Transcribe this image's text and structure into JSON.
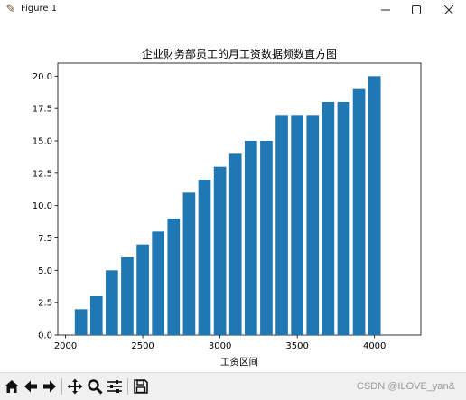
{
  "window": {
    "title": "Figure 1",
    "icon": "figure-app-icon",
    "controls": [
      "minimize-icon",
      "maximize-icon",
      "close-icon"
    ]
  },
  "toolbar": {
    "buttons": [
      "home-icon",
      "back-arrow-icon",
      "forward-arrow-icon",
      "pan-move-icon",
      "zoom-magnifier-icon",
      "configure-subplots-icon",
      "save-floppy-icon"
    ],
    "watermark": "CSDN @ILOVE_yan&"
  },
  "chart_data": {
    "type": "bar",
    "title": "企业财务部员工的月工资数据频数直方图",
    "xlabel": "工资区间",
    "ylabel": "",
    "bar_color": "#1f77b4",
    "x": [
      2100,
      2200,
      2300,
      2400,
      2500,
      2600,
      2700,
      2800,
      2900,
      3000,
      3100,
      3200,
      3300,
      3400,
      3500,
      3600,
      3700,
      3800,
      3900,
      4000,
      4100
    ],
    "values": [
      2,
      3,
      5,
      6,
      7,
      8,
      9,
      11,
      12,
      13,
      14,
      15,
      15,
      17,
      17,
      17,
      18,
      18,
      19,
      20,
      0
    ],
    "xlim": [
      1950,
      4300
    ],
    "ylim": [
      0,
      21
    ],
    "xticks": [
      2000,
      2500,
      3000,
      3500,
      4000
    ],
    "xtick_labels": [
      "2000",
      "2500",
      "3000",
      "3500",
      "4000"
    ],
    "yticks": [
      0,
      2.5,
      5,
      7.5,
      10,
      12.5,
      15,
      17.5,
      20
    ],
    "ytick_labels": [
      "0.0",
      "2.5",
      "5.0",
      "7.5",
      "10.0",
      "12.5",
      "15.0",
      "17.5",
      "20.0"
    ],
    "grid": false
  }
}
